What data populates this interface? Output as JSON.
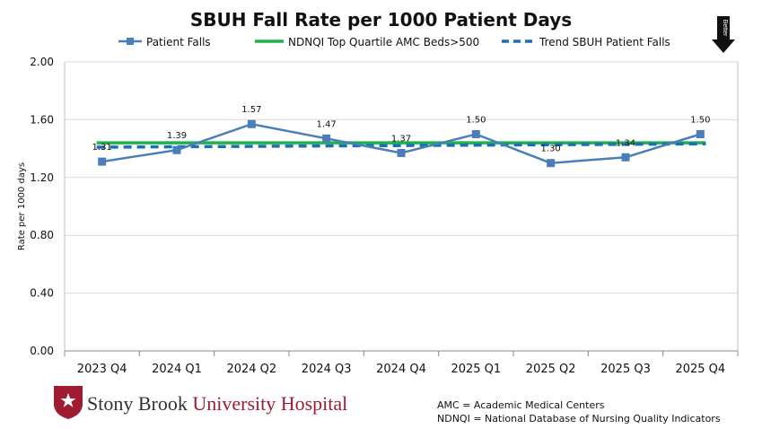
{
  "chart_data": {
    "type": "line",
    "title": "SBUH Fall Rate per 1000 Patient Days",
    "ylabel": "Rate per 1000 days",
    "xlabel": "",
    "ylim": [
      0,
      2.0
    ],
    "yticks": [
      "0.00",
      "0.40",
      "0.80",
      "1.20",
      "1.60",
      "2.00"
    ],
    "ytick_values": [
      0,
      0.4,
      0.8,
      1.2,
      1.6,
      2.0
    ],
    "categories": [
      "2023 Q4",
      "2024 Q1",
      "2024 Q2",
      "2024 Q3",
      "2024 Q4",
      "2025 Q1",
      "2025 Q2",
      "2025 Q3",
      "2025 Q4"
    ],
    "series": [
      {
        "name": "Patient Falls",
        "values": [
          1.31,
          1.39,
          1.57,
          1.47,
          1.37,
          1.5,
          1.3,
          1.34,
          1.5
        ],
        "labels": [
          "1.31",
          "1.39",
          "1.57",
          "1.47",
          "1.37",
          "1.50",
          "1.30",
          "1.34",
          "1.50"
        ],
        "color": "#4a7ebb"
      },
      {
        "name": "NDNQI Top Quartile AMC Beds>500",
        "values": [
          1.44,
          1.44,
          1.44,
          1.44,
          1.44,
          1.44,
          1.44,
          1.44,
          1.44
        ],
        "color": "#1fb24a"
      },
      {
        "name": "Trend SBUH Patient Falls",
        "values": [
          1.41,
          1.413,
          1.416,
          1.419,
          1.422,
          1.424,
          1.427,
          1.43,
          1.433
        ],
        "color": "#1b6fb5"
      }
    ],
    "grid": true,
    "legend_position": "top"
  },
  "better_label": "Better",
  "logo": {
    "part1": "Stony Brook ",
    "part2": "University Hospital",
    "color": "#9e1b32"
  },
  "notes": [
    "AMC = Academic Medical Centers",
    "NDNQI = National Database of Nursing Quality Indicators"
  ]
}
